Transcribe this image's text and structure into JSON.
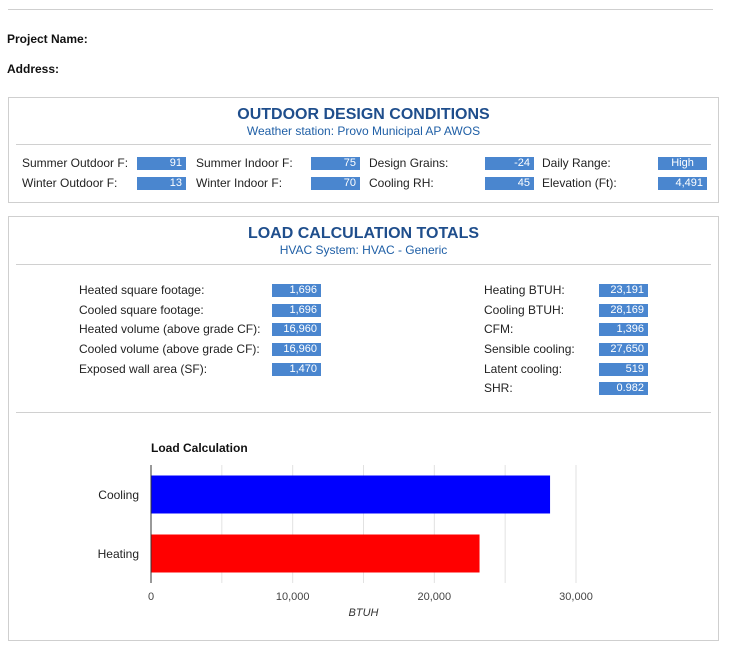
{
  "header": {
    "project_name_label": "Project Name:",
    "address_label": "Address:"
  },
  "outdoor": {
    "title": "OUTDOOR DESIGN CONDITIONS",
    "subtitle": "Weather station: Provo Municipal AP AWOS",
    "items": [
      {
        "label": "Summer Outdoor F:",
        "value": "91"
      },
      {
        "label": "Winter Outdoor F:",
        "value": "13"
      },
      {
        "label": "Summer Indoor F:",
        "value": "75"
      },
      {
        "label": "Winter Indoor F:",
        "value": "70"
      },
      {
        "label": "Design Grains:",
        "value": "-24"
      },
      {
        "label": "Cooling RH:",
        "value": "45"
      },
      {
        "label": "Daily Range:",
        "value": "High"
      },
      {
        "label": "Elevation (Ft):",
        "value": "4,491"
      }
    ]
  },
  "load": {
    "title": "LOAD CALCULATION TOTALS",
    "subtitle": "HVAC System: HVAC - Generic",
    "left": [
      {
        "label": "Heated square footage:",
        "value": "1,696"
      },
      {
        "label": "Cooled square footage:",
        "value": "1,696"
      },
      {
        "label": "Heated volume (above grade CF):",
        "value": "16,960"
      },
      {
        "label": "Cooled volume (above grade CF):",
        "value": "16,960"
      },
      {
        "label": "Exposed wall area (SF):",
        "value": "1,470"
      }
    ],
    "right": [
      {
        "label": "Heating BTUH:",
        "value": "23,191"
      },
      {
        "label": "Cooling BTUH:",
        "value": "28,169"
      },
      {
        "label": "CFM:",
        "value": "1,396"
      },
      {
        "label": "Sensible cooling:",
        "value": "27,650"
      },
      {
        "label": "Latent cooling:",
        "value": "519"
      },
      {
        "label": "SHR:",
        "value": "0.982"
      }
    ]
  },
  "colors": {
    "title_blue": "#1f4e8c",
    "value_badge": "#4a86cf",
    "cooling_bar": "#0000ff",
    "heating_bar": "#ff0000"
  },
  "chart_data": {
    "type": "bar",
    "orientation": "horizontal",
    "title": "Load Calculation",
    "categories": [
      "Cooling",
      "Heating"
    ],
    "values": [
      28169,
      23191
    ],
    "bar_colors": [
      "#0000ff",
      "#ff0000"
    ],
    "xlabel": "BTUH",
    "ylabel": "",
    "xlim": [
      0,
      30000
    ],
    "xticks": [
      0,
      10000,
      20000,
      30000
    ],
    "xtick_labels": [
      "0",
      "10,000",
      "20,000",
      "30,000"
    ],
    "grid": true
  }
}
